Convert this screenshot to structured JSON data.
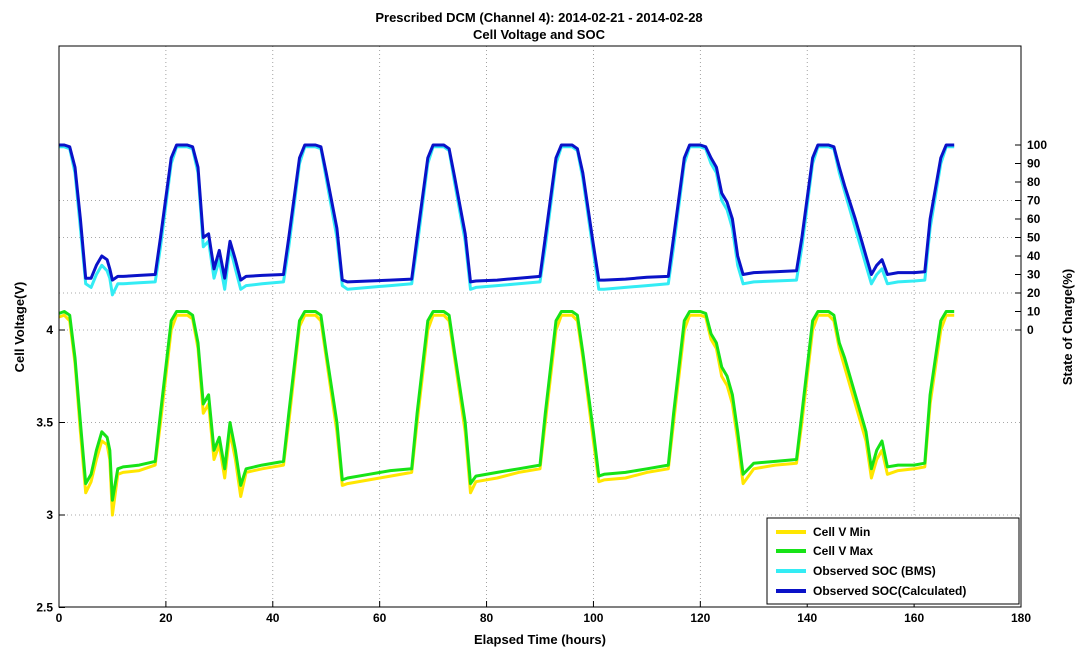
{
  "chart_data": {
    "type": "line",
    "title": "Prescribed DCM (Channel 4): 2014-02-21 - 2014-02-28",
    "subtitle": "Cell Voltage and SOC",
    "xlabel": "Elapsed Time (hours)",
    "ylabel": "Cell Voltage(V)",
    "y2label": "State of Charge(%)",
    "xlim": [
      0,
      180
    ],
    "ylim": [
      2.5,
      4.6
    ],
    "x_ticks": [
      "0",
      "20",
      "40",
      "60",
      "80",
      "100",
      "120",
      "140",
      "160",
      "180"
    ],
    "y_ticks": [
      "2.5",
      "3",
      "3.5",
      "4"
    ],
    "y2_ticks": [
      "0",
      "10",
      "20",
      "30",
      "40",
      "50",
      "60",
      "70",
      "80",
      "90",
      "100"
    ],
    "grid": true,
    "legend_position": "bottom-right",
    "colors": {
      "cell_v_min": "#ffe600",
      "cell_v_max": "#17e317",
      "soc_bms": "#33ecf4",
      "soc_calc": "#0a12c8"
    },
    "series": [
      {
        "name": "Cell V Min",
        "axis": "left",
        "x": [
          0,
          1,
          2,
          3,
          4,
          5,
          6,
          7,
          8,
          9,
          9.5,
          10,
          11,
          12,
          15,
          18,
          19,
          21,
          22,
          24,
          25,
          26,
          27,
          28,
          29,
          30,
          31,
          32,
          33,
          34,
          35,
          38,
          42,
          43,
          45,
          46,
          48,
          49,
          50,
          52,
          53,
          54,
          58,
          62,
          66,
          67,
          69,
          70,
          72,
          73,
          74,
          76,
          77,
          78,
          82,
          86,
          90,
          91,
          93,
          94,
          96,
          97,
          98,
          100,
          101,
          102,
          106,
          110,
          114,
          115,
          117,
          118,
          120,
          121,
          122,
          123,
          124,
          125,
          126,
          127,
          128,
          130,
          134,
          138,
          139,
          141,
          142,
          144,
          145,
          146,
          147,
          149,
          150,
          151,
          152,
          153,
          154,
          155,
          157,
          160,
          162,
          163,
          165,
          166,
          167.5
        ],
        "values": [
          4.07,
          4.08,
          4.05,
          3.82,
          3.45,
          3.12,
          3.18,
          3.3,
          3.4,
          3.38,
          3.3,
          3.0,
          3.22,
          3.23,
          3.24,
          3.27,
          3.5,
          4.0,
          4.08,
          4.08,
          4.06,
          3.9,
          3.55,
          3.6,
          3.3,
          3.38,
          3.2,
          3.45,
          3.3,
          3.1,
          3.23,
          3.25,
          3.27,
          3.5,
          4.02,
          4.08,
          4.08,
          4.05,
          3.85,
          3.45,
          3.16,
          3.17,
          3.19,
          3.21,
          3.23,
          3.5,
          4.0,
          4.08,
          4.08,
          4.05,
          3.85,
          3.45,
          3.12,
          3.18,
          3.2,
          3.23,
          3.25,
          3.5,
          4.0,
          4.08,
          4.08,
          4.05,
          3.85,
          3.4,
          3.18,
          3.19,
          3.2,
          3.23,
          3.25,
          3.5,
          4.0,
          4.08,
          4.08,
          4.07,
          3.95,
          3.9,
          3.75,
          3.7,
          3.6,
          3.4,
          3.17,
          3.25,
          3.27,
          3.28,
          3.5,
          4.0,
          4.08,
          4.08,
          4.05,
          3.9,
          3.8,
          3.6,
          3.5,
          3.4,
          3.2,
          3.3,
          3.35,
          3.22,
          3.24,
          3.25,
          3.26,
          3.6,
          4.0,
          4.08,
          4.08
        ]
      },
      {
        "name": "Cell V Max",
        "axis": "left",
        "x": [
          0,
          1,
          2,
          3,
          4,
          5,
          6,
          7,
          8,
          9,
          9.5,
          10,
          11,
          12,
          15,
          18,
          19,
          21,
          22,
          24,
          25,
          26,
          27,
          28,
          29,
          30,
          31,
          32,
          33,
          34,
          35,
          38,
          42,
          43,
          45,
          46,
          48,
          49,
          50,
          52,
          53,
          54,
          58,
          62,
          66,
          67,
          69,
          70,
          72,
          73,
          74,
          76,
          77,
          78,
          82,
          86,
          90,
          91,
          93,
          94,
          96,
          97,
          98,
          100,
          101,
          102,
          106,
          110,
          114,
          115,
          117,
          118,
          120,
          121,
          122,
          123,
          124,
          125,
          126,
          127,
          128,
          130,
          134,
          138,
          139,
          141,
          142,
          144,
          145,
          146,
          147,
          149,
          150,
          151,
          152,
          153,
          154,
          155,
          157,
          160,
          162,
          163,
          165,
          166,
          167.5
        ],
        "values": [
          4.09,
          4.1,
          4.08,
          3.85,
          3.5,
          3.17,
          3.22,
          3.35,
          3.45,
          3.42,
          3.35,
          3.08,
          3.25,
          3.26,
          3.27,
          3.29,
          3.55,
          4.05,
          4.1,
          4.1,
          4.08,
          3.93,
          3.6,
          3.65,
          3.35,
          3.42,
          3.25,
          3.5,
          3.35,
          3.16,
          3.25,
          3.27,
          3.29,
          3.55,
          4.05,
          4.1,
          4.1,
          4.08,
          3.88,
          3.5,
          3.19,
          3.2,
          3.22,
          3.24,
          3.25,
          3.55,
          4.05,
          4.1,
          4.1,
          4.08,
          3.88,
          3.5,
          3.17,
          3.21,
          3.23,
          3.25,
          3.27,
          3.55,
          4.05,
          4.1,
          4.1,
          4.08,
          3.88,
          3.45,
          3.21,
          3.22,
          3.23,
          3.25,
          3.27,
          3.55,
          4.05,
          4.1,
          4.1,
          4.09,
          3.98,
          3.93,
          3.8,
          3.75,
          3.65,
          3.45,
          3.22,
          3.28,
          3.29,
          3.3,
          3.55,
          4.05,
          4.1,
          4.1,
          4.08,
          3.93,
          3.85,
          3.65,
          3.55,
          3.45,
          3.25,
          3.35,
          3.4,
          3.26,
          3.27,
          3.27,
          3.28,
          3.65,
          4.05,
          4.1,
          4.1
        ]
      },
      {
        "name": "Observed SOC (BMS)",
        "axis": "right",
        "x": [
          0,
          1,
          2,
          3,
          4,
          5,
          6,
          7,
          8,
          9,
          9.5,
          10,
          11,
          12,
          15,
          18,
          19,
          21,
          22,
          24,
          25,
          26,
          27,
          28,
          29,
          30,
          31,
          32,
          33,
          34,
          35,
          38,
          42,
          43,
          45,
          46,
          48,
          49,
          50,
          52,
          53,
          54,
          58,
          62,
          66,
          67,
          69,
          70,
          72,
          73,
          74,
          76,
          77,
          78,
          82,
          86,
          90,
          91,
          93,
          94,
          96,
          97,
          98,
          100,
          101,
          102,
          106,
          110,
          114,
          115,
          117,
          118,
          120,
          121,
          122,
          123,
          124,
          125,
          126,
          127,
          128,
          130,
          134,
          138,
          139,
          141,
          142,
          144,
          145,
          146,
          147,
          149,
          150,
          151,
          152,
          153,
          154,
          155,
          157,
          160,
          162,
          163,
          165,
          166,
          167.5
        ],
        "values": [
          99,
          99,
          98,
          85,
          55,
          25,
          23,
          30,
          35,
          32,
          28,
          19,
          25,
          25,
          25.5,
          26,
          45,
          90,
          99,
          99,
          98,
          85,
          45,
          48,
          28,
          38,
          22,
          45,
          33,
          22,
          24,
          25,
          26,
          45,
          90,
          99,
          99,
          98,
          82,
          50,
          24,
          22,
          23,
          24,
          25,
          45,
          90,
          99,
          99,
          97,
          80,
          48,
          22,
          23,
          24,
          25,
          26,
          45,
          90,
          99,
          99,
          97,
          82,
          42,
          22,
          22,
          23,
          24,
          25,
          45,
          90,
          99,
          99,
          98,
          90,
          85,
          70,
          65,
          55,
          35,
          25,
          26,
          26.5,
          27,
          45,
          90,
          99,
          99,
          98,
          85,
          75,
          55,
          45,
          35,
          25,
          30,
          33,
          25,
          26,
          26.5,
          27,
          55,
          90,
          99,
          99
        ]
      },
      {
        "name": "Observed SOC(Calculated)",
        "axis": "right",
        "x": [
          0,
          1,
          2,
          3,
          4,
          5,
          6,
          7,
          8,
          9,
          9.5,
          10,
          11,
          12,
          15,
          18,
          19,
          21,
          22,
          24,
          25,
          26,
          27,
          28,
          29,
          30,
          31,
          32,
          33,
          34,
          35,
          38,
          42,
          43,
          45,
          46,
          48,
          49,
          50,
          52,
          53,
          54,
          58,
          62,
          66,
          67,
          69,
          70,
          72,
          73,
          74,
          76,
          77,
          78,
          82,
          86,
          90,
          91,
          93,
          94,
          96,
          97,
          98,
          100,
          101,
          102,
          106,
          110,
          114,
          115,
          117,
          118,
          120,
          121,
          122,
          123,
          124,
          125,
          126,
          127,
          128,
          130,
          134,
          138,
          139,
          141,
          142,
          144,
          145,
          146,
          147,
          149,
          150,
          151,
          152,
          153,
          154,
          155,
          157,
          160,
          162,
          163,
          165,
          166,
          167.5
        ],
        "values": [
          100,
          100,
          99,
          88,
          60,
          28,
          28,
          35,
          40,
          38,
          33,
          27,
          29,
          29,
          29.5,
          30,
          50,
          93,
          100,
          100,
          99,
          88,
          50,
          52,
          33,
          43,
          28,
          48,
          38,
          27,
          29,
          29.5,
          30,
          50,
          93,
          100,
          100,
          99,
          85,
          55,
          27,
          26,
          26.5,
          27,
          27.5,
          50,
          93,
          100,
          100,
          98,
          83,
          52,
          26,
          26.5,
          27,
          28,
          29,
          50,
          93,
          100,
          100,
          98,
          85,
          46,
          27,
          27,
          27.5,
          28.5,
          29,
          50,
          93,
          100,
          100,
          99,
          93,
          88,
          74,
          69,
          60,
          40,
          30,
          31,
          31.5,
          32,
          50,
          93,
          100,
          100,
          99,
          88,
          78,
          60,
          50,
          40,
          30,
          35,
          38,
          30,
          31,
          31,
          31.5,
          60,
          93,
          100,
          100
        ]
      }
    ]
  }
}
